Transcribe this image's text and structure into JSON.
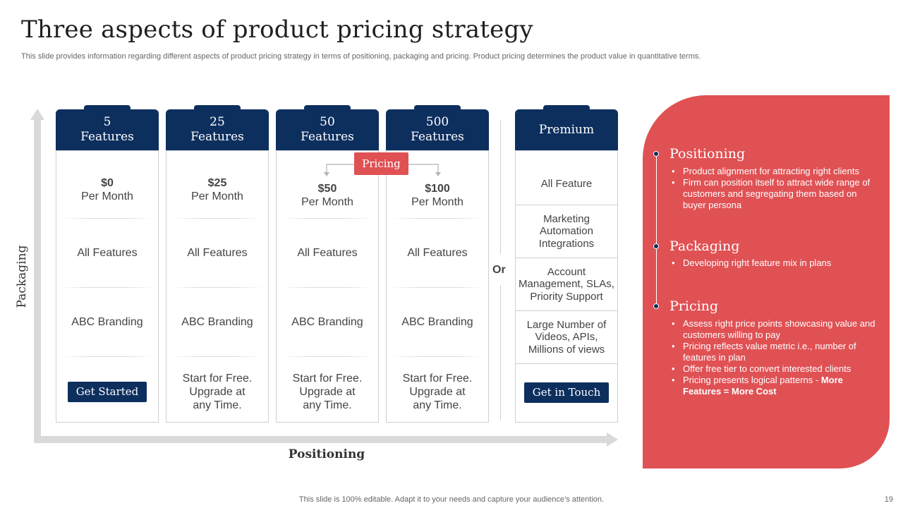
{
  "slide": {
    "title": "Three aspects of product pricing strategy",
    "subtitle": "This slide provides information regarding different aspects of product pricing strategy in terms of positioning, packaging and pricing. Product pricing determines the product value in quantitative terms.",
    "footer": "This slide is 100% editable. Adapt it to your needs and capture your audience’s attention.",
    "page_number": "19"
  },
  "axes": {
    "y_label": "Packaging",
    "x_label": "Positioning"
  },
  "pricing_tag": "Pricing",
  "or_label": "Or",
  "plans": [
    {
      "count": "5",
      "unit": "Features",
      "price": "$0",
      "period": "Per Month",
      "features": "All Features",
      "branding": "ABC Branding",
      "cta": "Get Started"
    },
    {
      "count": "25",
      "unit": "Features",
      "price": "$25",
      "period": "Per Month",
      "features": "All Features",
      "branding": "ABC Branding",
      "cta": "Start for Free. Upgrade at any Time."
    },
    {
      "count": "50",
      "unit": "Features",
      "price": "$50",
      "period": "Per Month",
      "features": "All Features",
      "branding": "ABC Branding",
      "cta": "Start for Free. Upgrade at any Time."
    },
    {
      "count": "500",
      "unit": "Features",
      "price": "$100",
      "period": "Per Month",
      "features": "All Features",
      "branding": "ABC Branding",
      "cta": "Start for Free. Upgrade at any Time."
    }
  ],
  "premium": {
    "title": "Premium",
    "items": [
      "All Feature",
      "Marketing Automation Integrations",
      "Account Management, SLAs, Priority Support",
      "Large Number of Videos, APIs, Millions of views"
    ],
    "cta": "Get in Touch"
  },
  "panel": {
    "sections": [
      {
        "title": "Positioning",
        "bullets": [
          "Product alignment for attracting right clients",
          "Firm can position itself to attract wide range of customers and segregating them based on buyer persona"
        ]
      },
      {
        "title": "Packaging",
        "bullets": [
          "Developing  right feature mix in plans"
        ]
      },
      {
        "title": "Pricing",
        "bullets": [
          "Assess right price points showcasing value  and customers willing to pay",
          "Pricing reflects value metric i.e., number of features in plan",
          "Offer free tier to convert interested clients",
          "Pricing presents logical patterns - "
        ],
        "emphasis": "More Features = More Cost"
      }
    ]
  },
  "colors": {
    "navy": "#0d2f5e",
    "red": "#e05154",
    "axis": "#d9d9d9"
  }
}
